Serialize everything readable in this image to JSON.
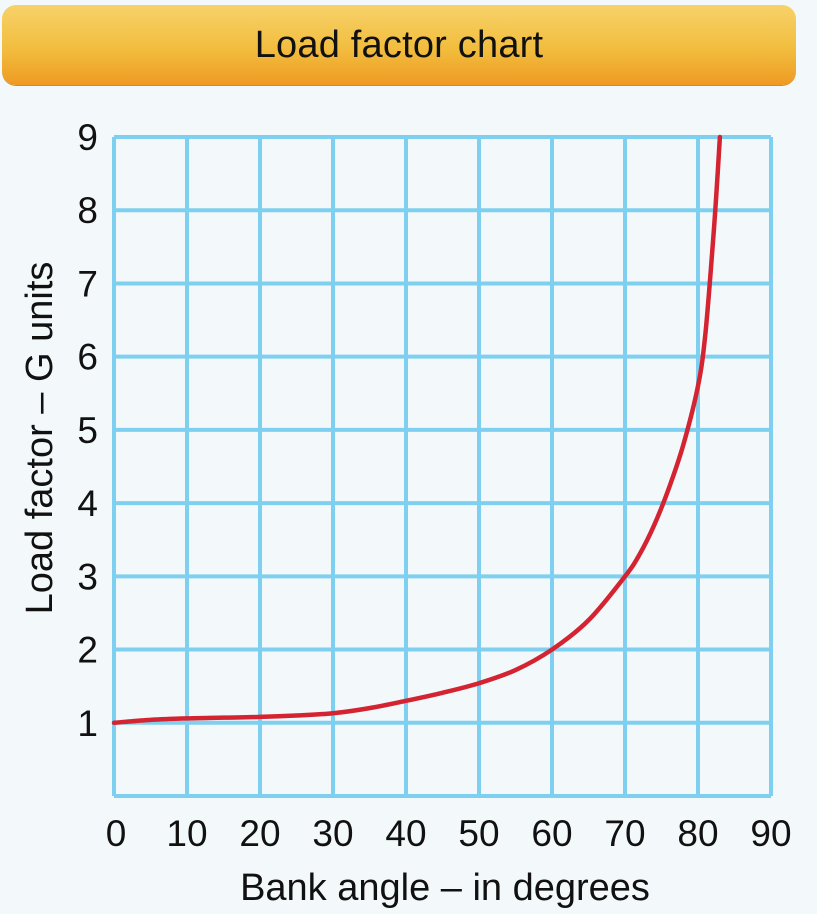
{
  "colors": {
    "background": "#f3f8fb",
    "grid": "#7fd0f0",
    "curve": "#d42331",
    "title_bar": "#f2bd3e",
    "text": "#111111"
  },
  "chart_data": {
    "type": "line",
    "title": "Load factor chart",
    "xlabel": "Bank angle – in degrees",
    "ylabel": "Load factor – G units",
    "xlim": [
      0,
      90
    ],
    "ylim": [
      0,
      9
    ],
    "x_ticks": [
      "0",
      "10",
      "20",
      "30",
      "40",
      "50",
      "60",
      "70",
      "80",
      "90"
    ],
    "y_ticks": [
      "1",
      "2",
      "3",
      "4",
      "5",
      "6",
      "7",
      "8",
      "9"
    ],
    "grid": true,
    "legend": "none",
    "series": [
      {
        "x": [
          0,
          5,
          10,
          15,
          20,
          25,
          30,
          35,
          40,
          45,
          50,
          55,
          60,
          65,
          70,
          72,
          74,
          76,
          78,
          80,
          81,
          82,
          82.5,
          83
        ],
        "y": [
          1.0,
          1.04,
          1.06,
          1.07,
          1.08,
          1.1,
          1.13,
          1.2,
          1.3,
          1.41,
          1.54,
          1.72,
          2.0,
          2.4,
          3.0,
          3.3,
          3.7,
          4.2,
          4.8,
          5.6,
          6.3,
          7.5,
          8.2,
          9.0
        ]
      }
    ]
  }
}
